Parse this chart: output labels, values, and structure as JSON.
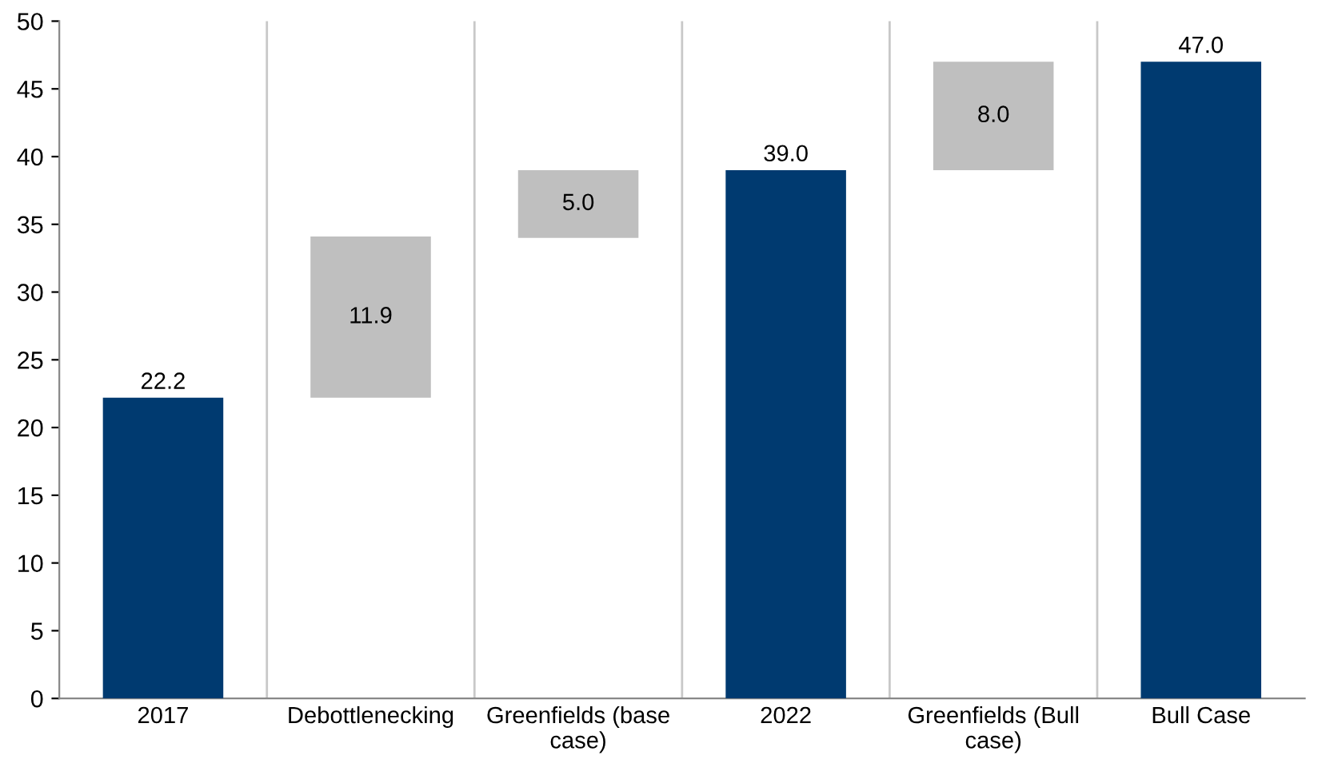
{
  "chart_data": {
    "type": "bar",
    "categories": [
      "2017",
      "Debottlenecking",
      "Greenfields (base\ncase)",
      "2022",
      "Greenfields (Bull\ncase)",
      "Bull Case"
    ],
    "values": [
      22.2,
      11.9,
      5.0,
      39.0,
      8.0,
      47.0
    ],
    "base": [
      0,
      22.2,
      34.0,
      0,
      39.0,
      0
    ],
    "colors": [
      "#003a70",
      "#bfbfbf",
      "#bfbfbf",
      "#003a70",
      "#bfbfbf",
      "#003a70"
    ],
    "ylim": [
      0,
      50
    ],
    "yticks": [
      0,
      5,
      10,
      15,
      20,
      25,
      30,
      35,
      40,
      45,
      50
    ],
    "value_labels": [
      "22.2",
      "11.9",
      "5.0",
      "39.0",
      "8.0",
      "47.0"
    ],
    "grid": "x"
  }
}
